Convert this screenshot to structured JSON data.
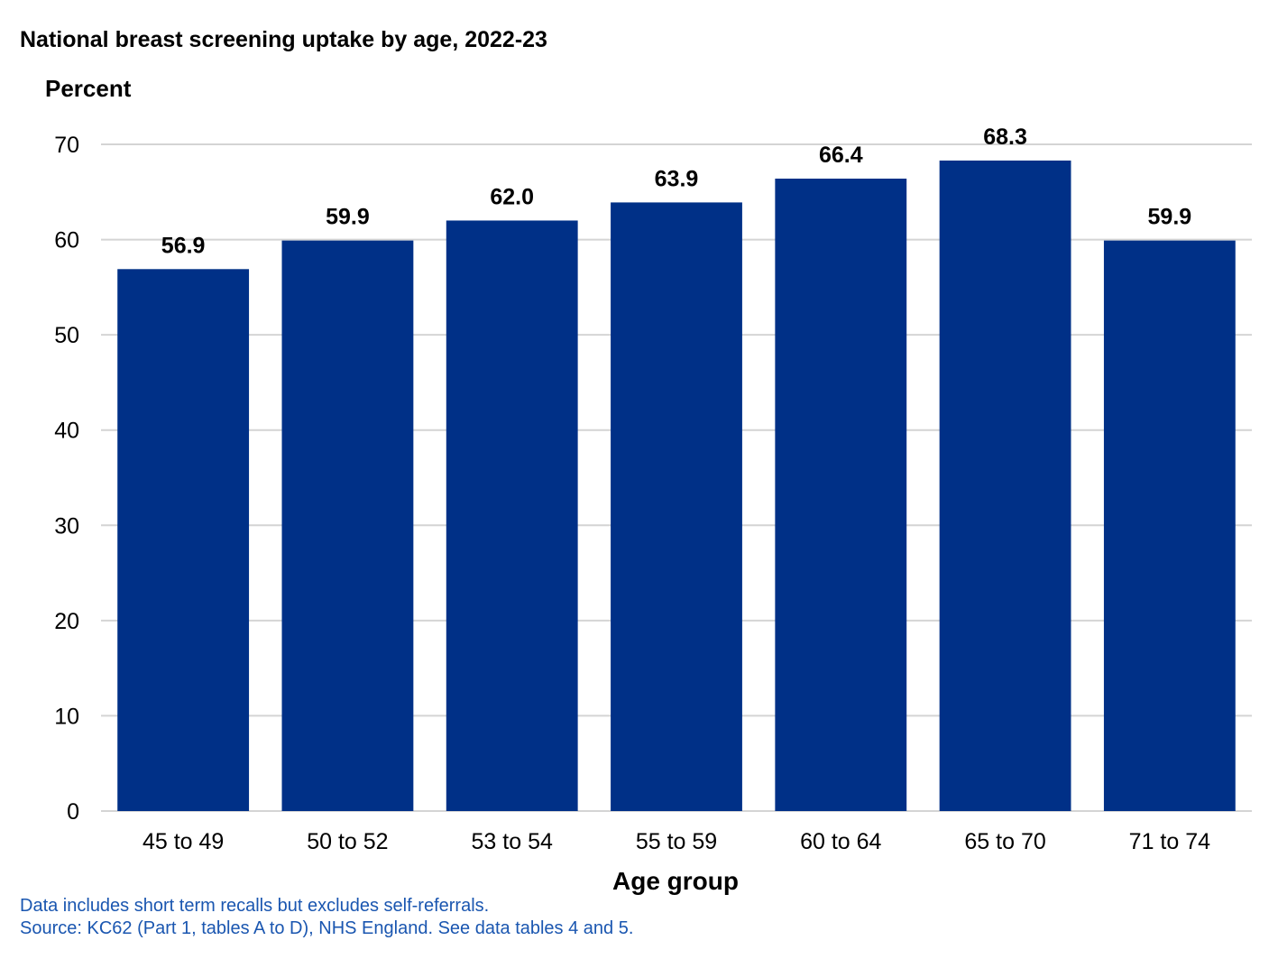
{
  "chart_data": {
    "type": "bar",
    "title": "National breast screening uptake by age, 2022-23",
    "ylabel": "Percent",
    "xlabel": "Age group",
    "categories": [
      "45 to 49",
      "50 to 52",
      "53 to 54",
      "55 to 59",
      "60 to 64",
      "65 to 70",
      "71 to 74"
    ],
    "values": [
      56.9,
      59.9,
      62.0,
      63.9,
      66.4,
      68.3,
      59.9
    ],
    "value_labels": [
      "56.9",
      "59.9",
      "62.0",
      "63.9",
      "66.4",
      "68.3",
      "59.9"
    ],
    "ylim": [
      0,
      70
    ],
    "yticks": [
      "0",
      "10",
      "20",
      "30",
      "40",
      "50",
      "60",
      "70"
    ],
    "grid": true,
    "bar_color": "#003087",
    "notes": [
      "Data includes short term recalls but excludes self-referrals.",
      "Source: KC62 (Part 1, tables A to D), NHS England. See data tables 4 and 5."
    ]
  }
}
